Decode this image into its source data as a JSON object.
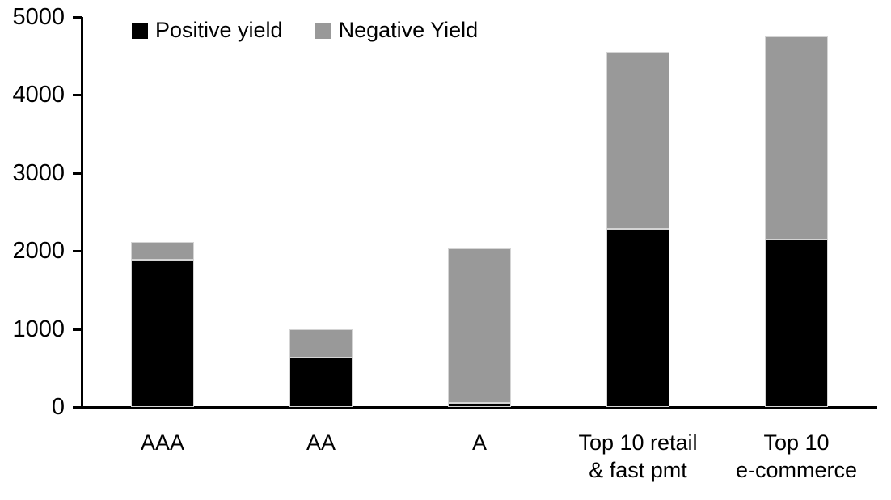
{
  "chart_data": {
    "type": "bar",
    "stacked": true,
    "grid": false,
    "legend_position": "top",
    "ylim": [
      0,
      5000
    ],
    "yticks": [
      0,
      1000,
      2000,
      3000,
      4000,
      5000
    ],
    "categories": [
      "AAA",
      "AA",
      "A",
      "Top 10 retail & fast pmt",
      "Top 10 e-commerce"
    ],
    "category_label_lines": [
      [
        "AAA"
      ],
      [
        "AA"
      ],
      [
        "A"
      ],
      [
        "Top 10 retail",
        "& fast pmt"
      ],
      [
        "Top 10",
        "e-commerce"
      ]
    ],
    "series": [
      {
        "name": "Positive yield",
        "color": "#000000",
        "values": [
          1890,
          630,
          50,
          2280,
          2150
        ]
      },
      {
        "name": "Negative Yield",
        "color": "#999999",
        "values": [
          230,
          370,
          1980,
          2270,
          2600
        ]
      }
    ],
    "colors": {
      "background": "#ffffff",
      "axis": "#000000",
      "text": "#000000"
    }
  }
}
